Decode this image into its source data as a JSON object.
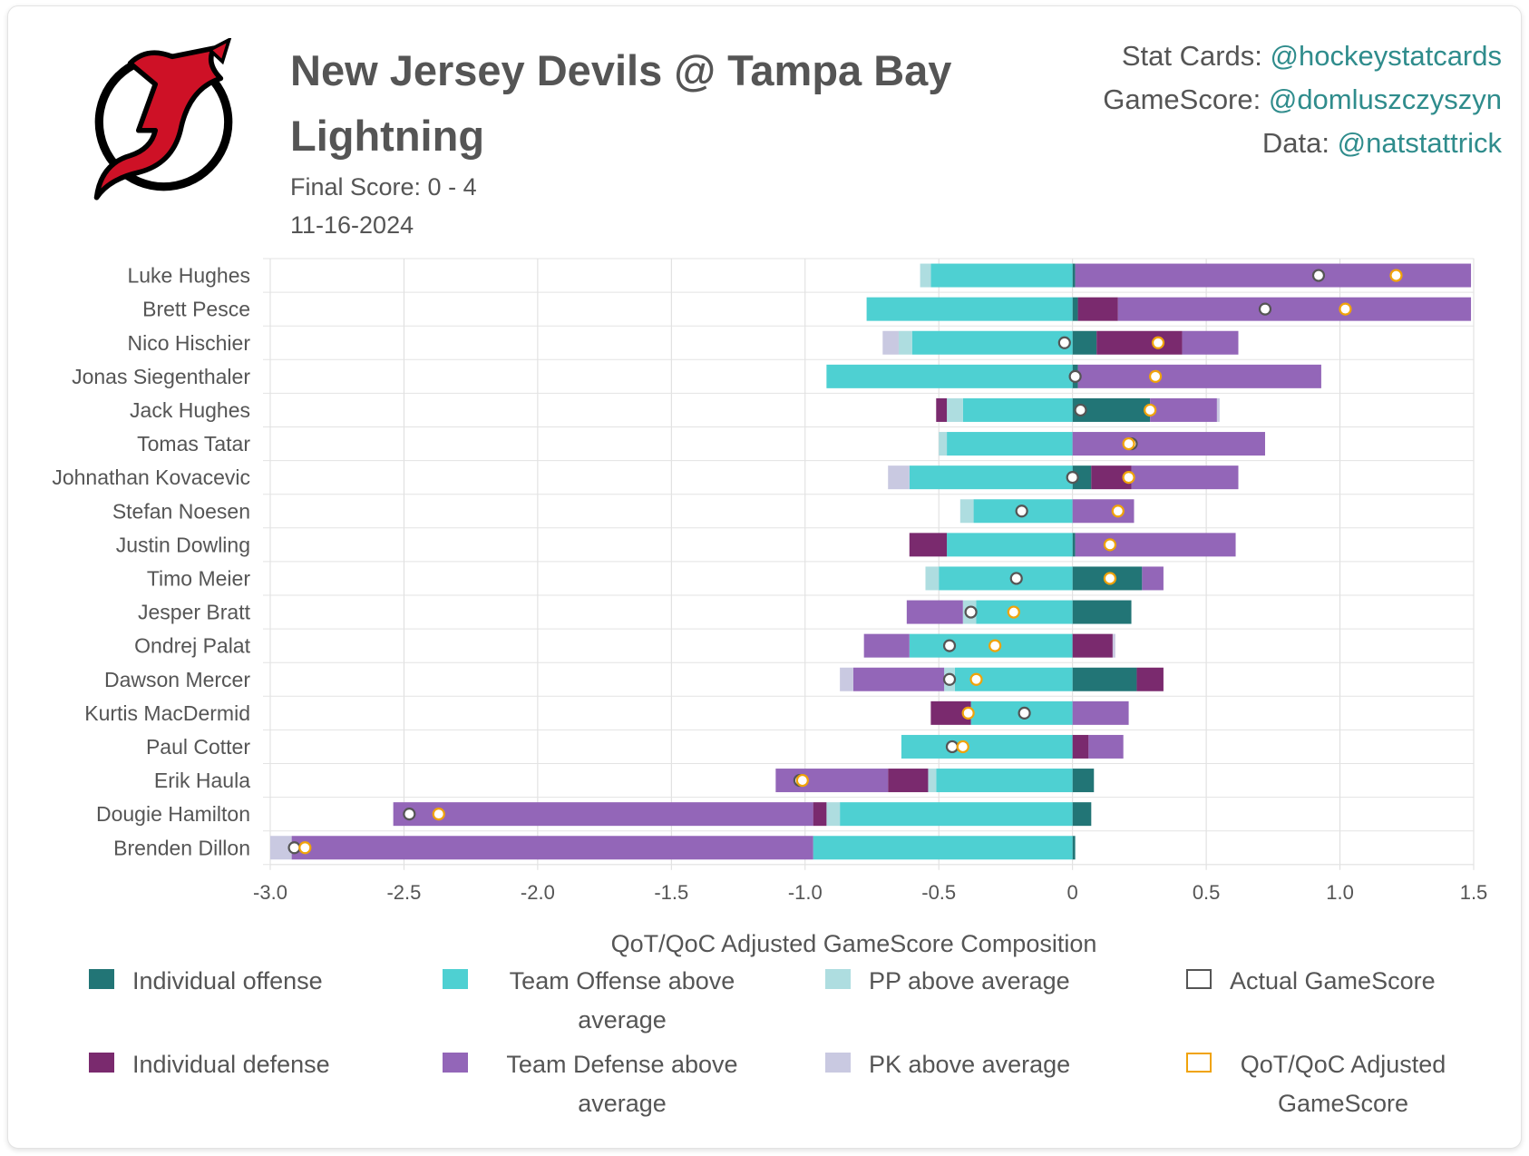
{
  "header": {
    "title": "New Jersey Devils @ Tampa Bay Lightning",
    "final_score": "Final Score: 0 - 4",
    "date": "11-16-2024"
  },
  "credits": [
    {
      "label": "Stat Cards: ",
      "handle": "@hockeystatcards"
    },
    {
      "label": "GameScore: ",
      "handle": "@domluszczyszyn"
    },
    {
      "label": "Data: ",
      "handle": "@natstattrick"
    }
  ],
  "logo": {
    "icon": "new-jersey-devils-logo",
    "colors": {
      "red": "#ce1126",
      "black": "#000000"
    }
  },
  "chart_data": {
    "type": "bar",
    "orientation": "horizontal",
    "stacked": true,
    "title": "",
    "xlabel": "QoT/QoC Adjusted GameScore Composition",
    "xlim": [
      -3.0,
      1.5
    ],
    "xticks": [
      -3.0,
      -2.5,
      -2.0,
      -1.5,
      -1.0,
      -0.5,
      0,
      0.5,
      1.0,
      1.5
    ],
    "xtick_labels": [
      "-3.0",
      "-2.5",
      "-2.0",
      "-1.5",
      "-1.0",
      "-0.5",
      "0",
      "0.5",
      "1.0",
      "1.5"
    ],
    "grid": true,
    "legend_position": "bottom",
    "categories": [
      "Luke Hughes",
      "Brett Pesce",
      "Nico Hischier",
      "Jonas Siegenthaler",
      "Jack Hughes",
      "Tomas Tatar",
      "Johnathan Kovacevic",
      "Stefan Noesen",
      "Justin Dowling",
      "Timo Meier",
      "Jesper Bratt",
      "Ondrej Palat",
      "Dawson Mercer",
      "Kurtis MacDermid",
      "Paul Cotter",
      "Erik Haula",
      "Dougie Hamilton",
      "Brenden Dillon"
    ],
    "series": [
      {
        "name": "Individual offense",
        "color": "#227576",
        "values": [
          0.01,
          0.02,
          0.09,
          0.02,
          0.29,
          0.0,
          0.07,
          0.0,
          0.01,
          0.26,
          0.22,
          0.0,
          0.24,
          0.0,
          0.0,
          0.08,
          0.07,
          0.01
        ]
      },
      {
        "name": "Team Offense above average",
        "color": "#4ed0d2",
        "values": [
          -0.53,
          -0.77,
          -0.6,
          -0.92,
          -0.41,
          -0.47,
          -0.61,
          -0.37,
          -0.47,
          -0.5,
          -0.36,
          -0.61,
          -0.44,
          -0.38,
          -0.64,
          -0.51,
          -0.87,
          -0.97
        ]
      },
      {
        "name": "PP above average",
        "color": "#aedde0",
        "values": [
          -0.04,
          0.0,
          -0.05,
          0.0,
          -0.06,
          -0.03,
          0.0,
          -0.05,
          0.0,
          -0.05,
          -0.05,
          0.0,
          -0.04,
          0.0,
          0.0,
          -0.03,
          -0.05,
          0.0
        ]
      },
      {
        "name": "Individual defense",
        "color": "#7a2a6e",
        "values": [
          0.0,
          0.15,
          0.32,
          0.0,
          -0.04,
          0.0,
          0.15,
          0.0,
          -0.14,
          0.0,
          0.0,
          0.15,
          0.1,
          -0.15,
          0.06,
          -0.15,
          -0.05,
          0.0
        ]
      },
      {
        "name": "Team Defense above average",
        "color": "#9366b8",
        "values": [
          1.48,
          1.32,
          0.21,
          0.91,
          0.25,
          0.72,
          0.4,
          0.23,
          0.6,
          0.08,
          -0.21,
          -0.17,
          -0.34,
          0.21,
          0.13,
          -0.42,
          -1.57,
          -1.95
        ]
      },
      {
        "name": "PK above average",
        "color": "#c9c9e1",
        "values": [
          0.0,
          0.0,
          -0.06,
          0.0,
          0.01,
          0.0,
          -0.08,
          0.0,
          0.0,
          0.0,
          0.0,
          0.01,
          -0.05,
          0.0,
          0.0,
          0.0,
          0.0,
          -0.08
        ]
      }
    ],
    "markers": [
      {
        "name": "Actual GameScore",
        "color": "#555555",
        "values": [
          0.92,
          0.72,
          -0.03,
          0.01,
          0.03,
          0.22,
          0.0,
          -0.19,
          0.14,
          -0.21,
          -0.38,
          -0.46,
          -0.46,
          -0.18,
          -0.45,
          -1.02,
          -2.48,
          -2.91
        ]
      },
      {
        "name": "QoT/QoC Adjusted GameScore",
        "color": "#f0a30a",
        "values": [
          1.21,
          1.02,
          0.32,
          0.31,
          0.29,
          0.21,
          0.21,
          0.17,
          0.14,
          0.14,
          -0.22,
          -0.29,
          -0.36,
          -0.39,
          -0.41,
          -1.01,
          -2.37,
          -2.87
        ]
      }
    ]
  },
  "legend": [
    {
      "label": "Individual offense",
      "color": "#227576",
      "style": "fill"
    },
    {
      "label": "Team Offense above average",
      "color": "#4ed0d2",
      "style": "fill"
    },
    {
      "label": "PP above average",
      "color": "#aedde0",
      "style": "fill"
    },
    {
      "label": "Actual GameScore",
      "color": "#555555",
      "style": "outline"
    },
    {
      "label": "Individual defense",
      "color": "#7a2a6e",
      "style": "fill"
    },
    {
      "label": "Team Defense above average",
      "color": "#9366b8",
      "style": "fill"
    },
    {
      "label": "PK above average",
      "color": "#c9c9e1",
      "style": "fill"
    },
    {
      "label": "QoT/QoC Adjusted GameScore",
      "color": "#f0a30a",
      "style": "outline"
    }
  ]
}
